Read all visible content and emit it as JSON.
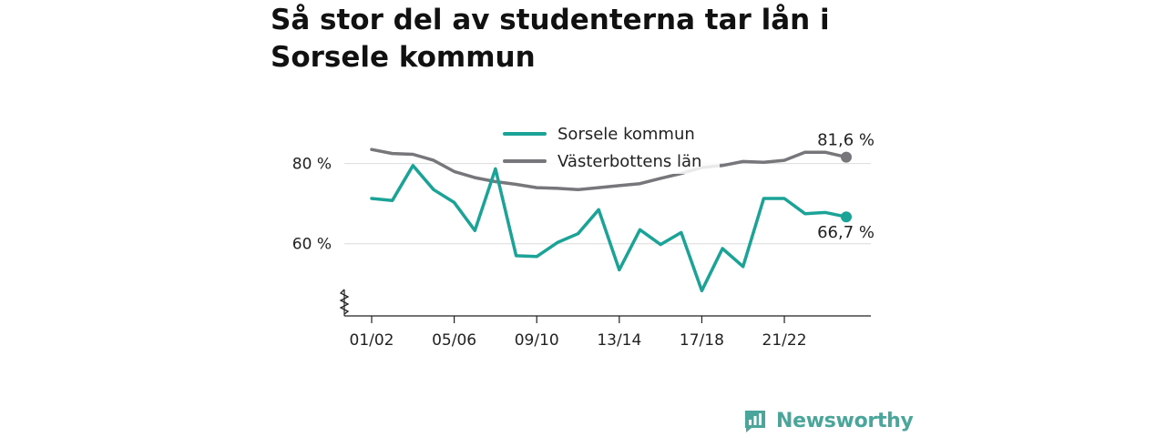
{
  "title": "Så stor del av studenterna tar lån i Sorsele kommun",
  "brand": {
    "name": "Newsworthy",
    "icon": "bar-chart-logo-icon",
    "color": "#4aa59a"
  },
  "chart_data": {
    "type": "line",
    "title": "Så stor del av studenterna tar lån i Sorsele kommun",
    "xlabel": "",
    "ylabel": "",
    "ylim": [
      42,
      89
    ],
    "y_ticks": [
      {
        "value": 60,
        "label": "60 %"
      },
      {
        "value": 80,
        "label": "80 %"
      }
    ],
    "y_axis_break": true,
    "grid": true,
    "legend_position": "top",
    "x_ticks": [
      "01/02",
      "05/06",
      "09/10",
      "13/14",
      "17/18",
      "21/22"
    ],
    "x_tick_index": [
      0,
      4,
      8,
      12,
      16,
      20
    ],
    "x_count": 24,
    "series": [
      {
        "name": "Sorsele kommun",
        "color": "#1aa396",
        "values": [
          71.3,
          70.8,
          79.5,
          73.5,
          70.3,
          63.3,
          78.7,
          57.0,
          56.8,
          60.3,
          62.5,
          68.5,
          53.5,
          63.5,
          59.8,
          62.8,
          48.3,
          58.8,
          54.3,
          71.3,
          71.3,
          67.5,
          67.8,
          66.7
        ],
        "end_label": "66,7 %"
      },
      {
        "name": "Västerbottens län",
        "color": "#77767b",
        "values": [
          83.5,
          82.5,
          82.3,
          80.8,
          78.0,
          76.5,
          75.5,
          74.8,
          74.0,
          73.8,
          73.5,
          74.0,
          74.5,
          75.0,
          76.3,
          77.5,
          79.0,
          79.5,
          80.5,
          80.3,
          80.8,
          82.8,
          82.8,
          81.6
        ],
        "end_label": "81,6 %"
      }
    ]
  }
}
